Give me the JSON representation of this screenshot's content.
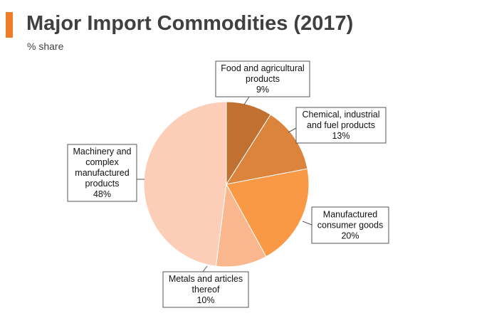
{
  "header": {
    "title": "Major Import Commodities (2017)",
    "subtitle": "% share",
    "accent_color": "#F07C28"
  },
  "chart_data": {
    "type": "pie",
    "title": "Major Import Commodities (2017)",
    "subtitle": "% share",
    "unit": "%",
    "start_angle_deg": 0,
    "direction": "clockwise",
    "slices": [
      {
        "name": "Food and agricultural products",
        "label_lines": [
          "Food and agricultural",
          "products"
        ],
        "value": 9,
        "value_label": "9%",
        "color": "#C07030"
      },
      {
        "name": "Chemical, industrial and fuel products",
        "label_lines": [
          "Chemical, industrial",
          "and fuel products"
        ],
        "value": 13,
        "value_label": "13%",
        "color": "#DD843C"
      },
      {
        "name": "Manufactured consumer goods",
        "label_lines": [
          "Manufactured",
          "consumer goods"
        ],
        "value": 20,
        "value_label": "20%",
        "color": "#F99845"
      },
      {
        "name": "Metals and articles thereof",
        "label_lines": [
          "Metals and articles",
          "thereof"
        ],
        "value": 10,
        "value_label": "10%",
        "color": "#FAB68C"
      },
      {
        "name": "Machinery and complex manufactured products",
        "label_lines": [
          "Machinery and",
          "complex",
          "manufactured",
          "products"
        ],
        "value": 48,
        "value_label": "48%",
        "color": "#FCCEB7"
      }
    ]
  }
}
